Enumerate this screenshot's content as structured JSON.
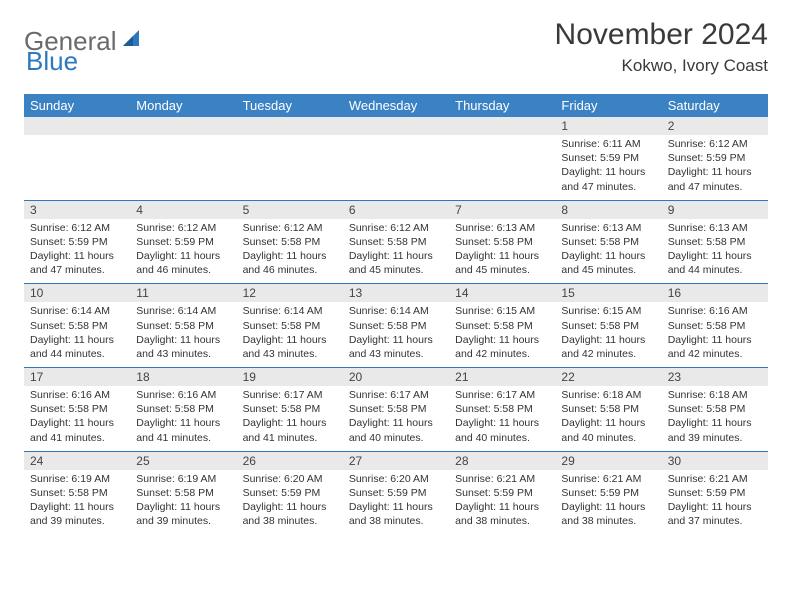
{
  "logo": {
    "text1": "General",
    "text2": "Blue"
  },
  "title": "November 2024",
  "location": "Kokwo, Ivory Coast",
  "colors": {
    "header_bg": "#3b82c4",
    "header_text": "#ffffff",
    "date_bg": "#e9e9e9",
    "row_border": "#2d78bf",
    "logo_gray": "#6a6a6a",
    "logo_blue": "#2d78bf"
  },
  "day_names": [
    "Sunday",
    "Monday",
    "Tuesday",
    "Wednesday",
    "Thursday",
    "Friday",
    "Saturday"
  ],
  "weeks": [
    [
      null,
      null,
      null,
      null,
      null,
      {
        "d": "1",
        "sr": "Sunrise: 6:11 AM",
        "ss": "Sunset: 5:59 PM",
        "dl": "Daylight: 11 hours and 47 minutes."
      },
      {
        "d": "2",
        "sr": "Sunrise: 6:12 AM",
        "ss": "Sunset: 5:59 PM",
        "dl": "Daylight: 11 hours and 47 minutes."
      }
    ],
    [
      {
        "d": "3",
        "sr": "Sunrise: 6:12 AM",
        "ss": "Sunset: 5:59 PM",
        "dl": "Daylight: 11 hours and 47 minutes."
      },
      {
        "d": "4",
        "sr": "Sunrise: 6:12 AM",
        "ss": "Sunset: 5:59 PM",
        "dl": "Daylight: 11 hours and 46 minutes."
      },
      {
        "d": "5",
        "sr": "Sunrise: 6:12 AM",
        "ss": "Sunset: 5:58 PM",
        "dl": "Daylight: 11 hours and 46 minutes."
      },
      {
        "d": "6",
        "sr": "Sunrise: 6:12 AM",
        "ss": "Sunset: 5:58 PM",
        "dl": "Daylight: 11 hours and 45 minutes."
      },
      {
        "d": "7",
        "sr": "Sunrise: 6:13 AM",
        "ss": "Sunset: 5:58 PM",
        "dl": "Daylight: 11 hours and 45 minutes."
      },
      {
        "d": "8",
        "sr": "Sunrise: 6:13 AM",
        "ss": "Sunset: 5:58 PM",
        "dl": "Daylight: 11 hours and 45 minutes."
      },
      {
        "d": "9",
        "sr": "Sunrise: 6:13 AM",
        "ss": "Sunset: 5:58 PM",
        "dl": "Daylight: 11 hours and 44 minutes."
      }
    ],
    [
      {
        "d": "10",
        "sr": "Sunrise: 6:14 AM",
        "ss": "Sunset: 5:58 PM",
        "dl": "Daylight: 11 hours and 44 minutes."
      },
      {
        "d": "11",
        "sr": "Sunrise: 6:14 AM",
        "ss": "Sunset: 5:58 PM",
        "dl": "Daylight: 11 hours and 43 minutes."
      },
      {
        "d": "12",
        "sr": "Sunrise: 6:14 AM",
        "ss": "Sunset: 5:58 PM",
        "dl": "Daylight: 11 hours and 43 minutes."
      },
      {
        "d": "13",
        "sr": "Sunrise: 6:14 AM",
        "ss": "Sunset: 5:58 PM",
        "dl": "Daylight: 11 hours and 43 minutes."
      },
      {
        "d": "14",
        "sr": "Sunrise: 6:15 AM",
        "ss": "Sunset: 5:58 PM",
        "dl": "Daylight: 11 hours and 42 minutes."
      },
      {
        "d": "15",
        "sr": "Sunrise: 6:15 AM",
        "ss": "Sunset: 5:58 PM",
        "dl": "Daylight: 11 hours and 42 minutes."
      },
      {
        "d": "16",
        "sr": "Sunrise: 6:16 AM",
        "ss": "Sunset: 5:58 PM",
        "dl": "Daylight: 11 hours and 42 minutes."
      }
    ],
    [
      {
        "d": "17",
        "sr": "Sunrise: 6:16 AM",
        "ss": "Sunset: 5:58 PM",
        "dl": "Daylight: 11 hours and 41 minutes."
      },
      {
        "d": "18",
        "sr": "Sunrise: 6:16 AM",
        "ss": "Sunset: 5:58 PM",
        "dl": "Daylight: 11 hours and 41 minutes."
      },
      {
        "d": "19",
        "sr": "Sunrise: 6:17 AM",
        "ss": "Sunset: 5:58 PM",
        "dl": "Daylight: 11 hours and 41 minutes."
      },
      {
        "d": "20",
        "sr": "Sunrise: 6:17 AM",
        "ss": "Sunset: 5:58 PM",
        "dl": "Daylight: 11 hours and 40 minutes."
      },
      {
        "d": "21",
        "sr": "Sunrise: 6:17 AM",
        "ss": "Sunset: 5:58 PM",
        "dl": "Daylight: 11 hours and 40 minutes."
      },
      {
        "d": "22",
        "sr": "Sunrise: 6:18 AM",
        "ss": "Sunset: 5:58 PM",
        "dl": "Daylight: 11 hours and 40 minutes."
      },
      {
        "d": "23",
        "sr": "Sunrise: 6:18 AM",
        "ss": "Sunset: 5:58 PM",
        "dl": "Daylight: 11 hours and 39 minutes."
      }
    ],
    [
      {
        "d": "24",
        "sr": "Sunrise: 6:19 AM",
        "ss": "Sunset: 5:58 PM",
        "dl": "Daylight: 11 hours and 39 minutes."
      },
      {
        "d": "25",
        "sr": "Sunrise: 6:19 AM",
        "ss": "Sunset: 5:58 PM",
        "dl": "Daylight: 11 hours and 39 minutes."
      },
      {
        "d": "26",
        "sr": "Sunrise: 6:20 AM",
        "ss": "Sunset: 5:59 PM",
        "dl": "Daylight: 11 hours and 38 minutes."
      },
      {
        "d": "27",
        "sr": "Sunrise: 6:20 AM",
        "ss": "Sunset: 5:59 PM",
        "dl": "Daylight: 11 hours and 38 minutes."
      },
      {
        "d": "28",
        "sr": "Sunrise: 6:21 AM",
        "ss": "Sunset: 5:59 PM",
        "dl": "Daylight: 11 hours and 38 minutes."
      },
      {
        "d": "29",
        "sr": "Sunrise: 6:21 AM",
        "ss": "Sunset: 5:59 PM",
        "dl": "Daylight: 11 hours and 38 minutes."
      },
      {
        "d": "30",
        "sr": "Sunrise: 6:21 AM",
        "ss": "Sunset: 5:59 PM",
        "dl": "Daylight: 11 hours and 37 minutes."
      }
    ]
  ]
}
